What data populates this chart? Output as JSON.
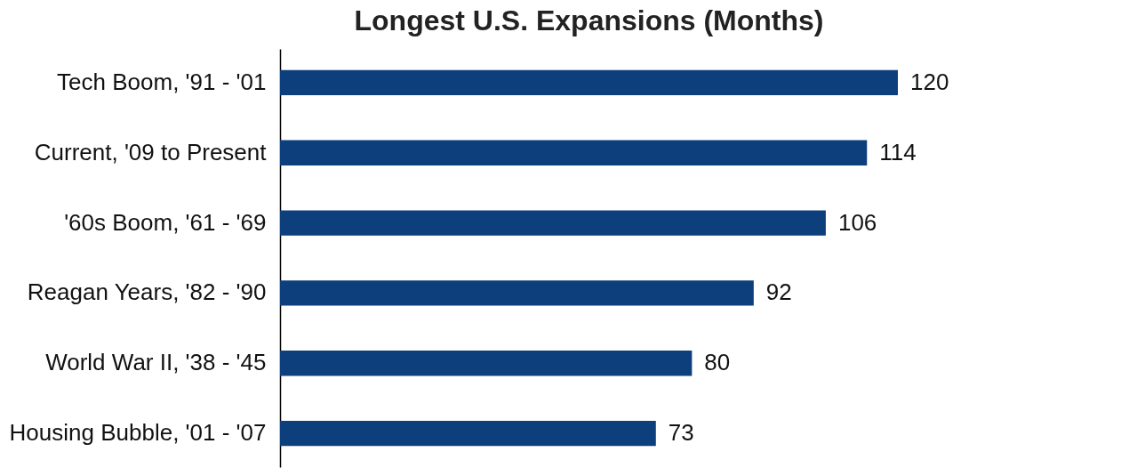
{
  "chart_data": {
    "type": "bar",
    "orientation": "horizontal",
    "title": "Longest U.S. Expansions (Months)",
    "categories": [
      "Tech Boom, '91 - '01",
      "Current,  '09 to Present",
      "'60s Boom, '61 - '69",
      "Reagan Years, '82 - '90",
      "World War II, '38 - '45",
      "Housing Bubble, '01 - '07"
    ],
    "values": [
      120,
      114,
      106,
      92,
      80,
      73
    ],
    "color": "#0d3f7d",
    "data_labels": true
  }
}
